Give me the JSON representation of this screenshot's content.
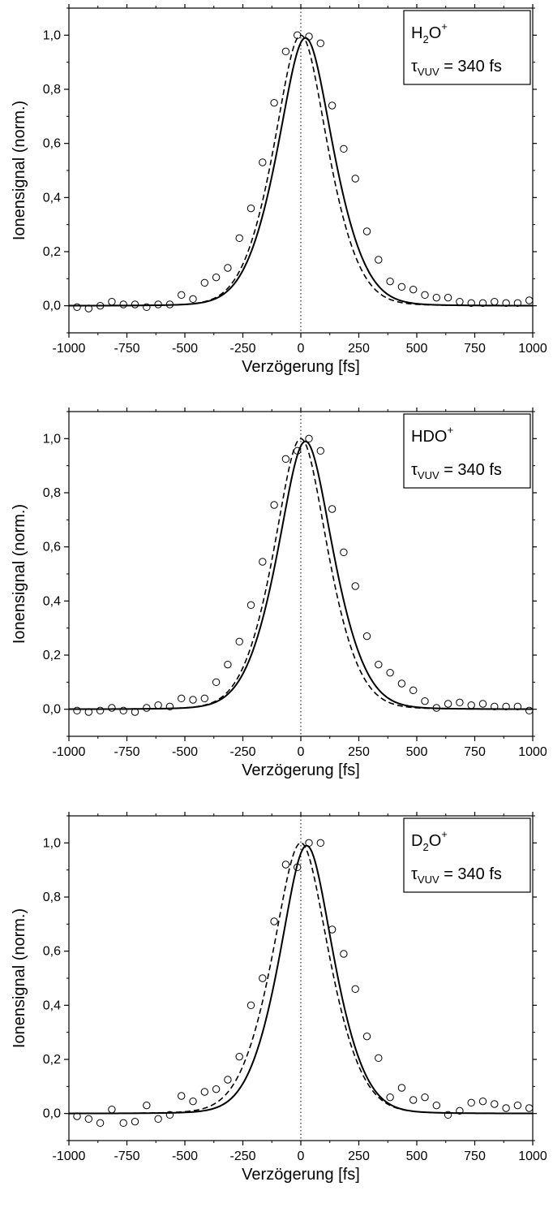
{
  "chart_data": [
    {
      "type": "scatter",
      "xlabel": "Verzögerung [fs]",
      "ylabel": "Ionensignal (norm.)",
      "xlim": [
        -1000,
        1000
      ],
      "ylim": [
        -0.1,
        1.1
      ],
      "x_ticks": [
        "-1000",
        "-750",
        "-500",
        "-250",
        "0",
        "250",
        "500",
        "750",
        "1000"
      ],
      "y_ticks": [
        "0,0",
        "0,2",
        "0,4",
        "0,6",
        "0,8",
        "1,0"
      ],
      "legend": {
        "species": "H",
        "species_sub": "2",
        "species_rest": "O",
        "species_sup": "+",
        "tau_symbol": "τ",
        "tau_sub": "VUV",
        "tau_value": " = 340 fs",
        "placement": "top-right"
      },
      "zero_line": {
        "x": 0,
        "style": "dotted"
      },
      "series": [
        {
          "style": "markers",
          "marker": "open-circle",
          "x": [
            -965,
            -915,
            -865,
            -815,
            -765,
            -715,
            -665,
            -615,
            -565,
            -515,
            -465,
            -415,
            -365,
            -315,
            -265,
            -215,
            -165,
            -115,
            -65,
            -15,
            35,
            85,
            135,
            185,
            235,
            285,
            335,
            385,
            435,
            485,
            535,
            585,
            635,
            685,
            735,
            785,
            835,
            885,
            935,
            985
          ],
          "y": [
            -0.005,
            -0.01,
            0.0,
            0.015,
            0.005,
            0.005,
            -0.005,
            0.005,
            0.005,
            0.04,
            0.025,
            0.085,
            0.105,
            0.14,
            0.25,
            0.36,
            0.53,
            0.75,
            0.94,
            1.0,
            0.995,
            0.97,
            0.74,
            0.58,
            0.47,
            0.275,
            0.17,
            0.09,
            0.07,
            0.06,
            0.04,
            0.03,
            0.03,
            0.015,
            0.01,
            0.01,
            0.015,
            0.01,
            0.01,
            0.02
          ]
        },
        {
          "style": "solid-line",
          "model": "fit",
          "center": 20,
          "fwhm": 340,
          "amplitude": 0.99
        },
        {
          "style": "dashed-line",
          "model": "fit",
          "center": 0,
          "fwhm": 330,
          "amplitude": 1.0
        }
      ]
    },
    {
      "type": "scatter",
      "xlabel": "Verzögerung [fs]",
      "ylabel": "Ionensignal (norm.)",
      "xlim": [
        -1000,
        1000
      ],
      "ylim": [
        -0.1,
        1.1
      ],
      "x_ticks": [
        "-1000",
        "-750",
        "-500",
        "-250",
        "0",
        "250",
        "500",
        "750",
        "1000"
      ],
      "y_ticks": [
        "0,0",
        "0,2",
        "0,4",
        "0,6",
        "0,8",
        "1,0"
      ],
      "legend": {
        "species": "HDO",
        "species_sub": "",
        "species_rest": "",
        "species_sup": "+",
        "tau_symbol": "τ",
        "tau_sub": "VUV",
        "tau_value": " = 340 fs",
        "placement": "top-right"
      },
      "zero_line": {
        "x": 0,
        "style": "dotted"
      },
      "series": [
        {
          "style": "markers",
          "marker": "open-circle",
          "x": [
            -965,
            -915,
            -865,
            -815,
            -765,
            -715,
            -665,
            -615,
            -565,
            -515,
            -465,
            -415,
            -365,
            -315,
            -265,
            -215,
            -165,
            -115,
            -65,
            -15,
            35,
            85,
            135,
            185,
            235,
            285,
            335,
            385,
            435,
            485,
            535,
            585,
            635,
            685,
            735,
            785,
            835,
            885,
            935,
            985
          ],
          "y": [
            -0.005,
            -0.01,
            -0.005,
            0.005,
            -0.005,
            -0.01,
            0.005,
            0.015,
            0.01,
            0.04,
            0.035,
            0.04,
            0.1,
            0.165,
            0.25,
            0.385,
            0.545,
            0.755,
            0.925,
            0.955,
            1.0,
            0.955,
            0.74,
            0.58,
            0.455,
            0.27,
            0.165,
            0.135,
            0.095,
            0.07,
            0.03,
            0.005,
            0.02,
            0.025,
            0.015,
            0.02,
            0.01,
            0.01,
            0.01,
            -0.005
          ]
        },
        {
          "style": "solid-line",
          "model": "fit",
          "center": 20,
          "fwhm": 340,
          "amplitude": 0.99
        },
        {
          "style": "dashed-line",
          "model": "fit",
          "center": 0,
          "fwhm": 330,
          "amplitude": 1.0
        }
      ]
    },
    {
      "type": "scatter",
      "xlabel": "Verzögerung [fs]",
      "ylabel": "Ionensignal (norm.)",
      "xlim": [
        -1000,
        1000
      ],
      "ylim": [
        -0.1,
        1.1
      ],
      "x_ticks": [
        "-1000",
        "-750",
        "-500",
        "-250",
        "0",
        "250",
        "500",
        "750",
        "1000"
      ],
      "y_ticks": [
        "0,0",
        "0,2",
        "0,4",
        "0,6",
        "0,8",
        "1,0"
      ],
      "legend": {
        "species": "D",
        "species_sub": "2",
        "species_rest": "O",
        "species_sup": "+",
        "tau_symbol": "τ",
        "tau_sub": "VUV",
        "tau_value": " = 340 fs",
        "placement": "top-right"
      },
      "zero_line": {
        "x": 0,
        "style": "dotted"
      },
      "series": [
        {
          "style": "markers",
          "marker": "open-circle",
          "x": [
            -965,
            -915,
            -865,
            -815,
            -765,
            -715,
            -665,
            -615,
            -565,
            -515,
            -465,
            -415,
            -365,
            -315,
            -265,
            -215,
            -165,
            -115,
            -65,
            -15,
            35,
            85,
            135,
            185,
            235,
            285,
            335,
            385,
            435,
            485,
            535,
            585,
            635,
            685,
            735,
            785,
            835,
            885,
            935,
            985
          ],
          "y": [
            -0.01,
            -0.02,
            -0.035,
            0.015,
            -0.035,
            -0.03,
            0.03,
            -0.02,
            -0.005,
            0.065,
            0.045,
            0.08,
            0.09,
            0.125,
            0.21,
            0.4,
            0.5,
            0.71,
            0.92,
            0.91,
            1.0,
            1.0,
            0.68,
            0.59,
            0.46,
            0.285,
            0.205,
            0.06,
            0.095,
            0.05,
            0.06,
            0.03,
            -0.005,
            0.01,
            0.04,
            0.045,
            0.035,
            0.02,
            0.03,
            0.02
          ]
        },
        {
          "style": "solid-line",
          "model": "fit",
          "center": 25,
          "fwhm": 330,
          "amplitude": 0.99
        },
        {
          "style": "dashed-line",
          "model": "fit",
          "center": 0,
          "fwhm": 345,
          "amplitude": 1.0
        }
      ]
    }
  ]
}
